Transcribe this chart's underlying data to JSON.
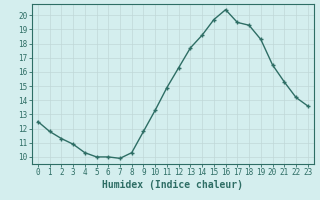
{
  "x": [
    0,
    1,
    2,
    3,
    4,
    5,
    6,
    7,
    8,
    9,
    10,
    11,
    12,
    13,
    14,
    15,
    16,
    17,
    18,
    19,
    20,
    21,
    22,
    23
  ],
  "y": [
    12.5,
    11.8,
    11.3,
    10.9,
    10.3,
    10.0,
    10.0,
    9.9,
    10.3,
    11.8,
    13.3,
    14.9,
    16.3,
    17.7,
    18.6,
    19.7,
    20.4,
    19.5,
    19.3,
    18.3,
    16.5,
    15.3,
    14.2,
    13.6
  ],
  "line_color": "#2e6e65",
  "marker": "+",
  "bg_color": "#d4eeee",
  "grid_color": "#c0d8d8",
  "title": "",
  "xlabel": "Humidex (Indice chaleur)",
  "ylabel": "",
  "xlim": [
    -0.5,
    23.5
  ],
  "ylim": [
    9.5,
    20.8
  ],
  "yticks": [
    10,
    11,
    12,
    13,
    14,
    15,
    16,
    17,
    18,
    19,
    20
  ],
  "xticks": [
    0,
    1,
    2,
    3,
    4,
    5,
    6,
    7,
    8,
    9,
    10,
    11,
    12,
    13,
    14,
    15,
    16,
    17,
    18,
    19,
    20,
    21,
    22,
    23
  ],
  "xtick_labels": [
    "0",
    "1",
    "2",
    "3",
    "4",
    "5",
    "6",
    "7",
    "8",
    "9",
    "10",
    "11",
    "12",
    "13",
    "14",
    "15",
    "16",
    "17",
    "18",
    "19",
    "20",
    "21",
    "22",
    "23"
  ],
  "tick_color": "#2e6e65",
  "xlabel_fontsize": 7,
  "tick_fontsize": 5.5,
  "line_width": 1.0,
  "marker_size": 3.5
}
